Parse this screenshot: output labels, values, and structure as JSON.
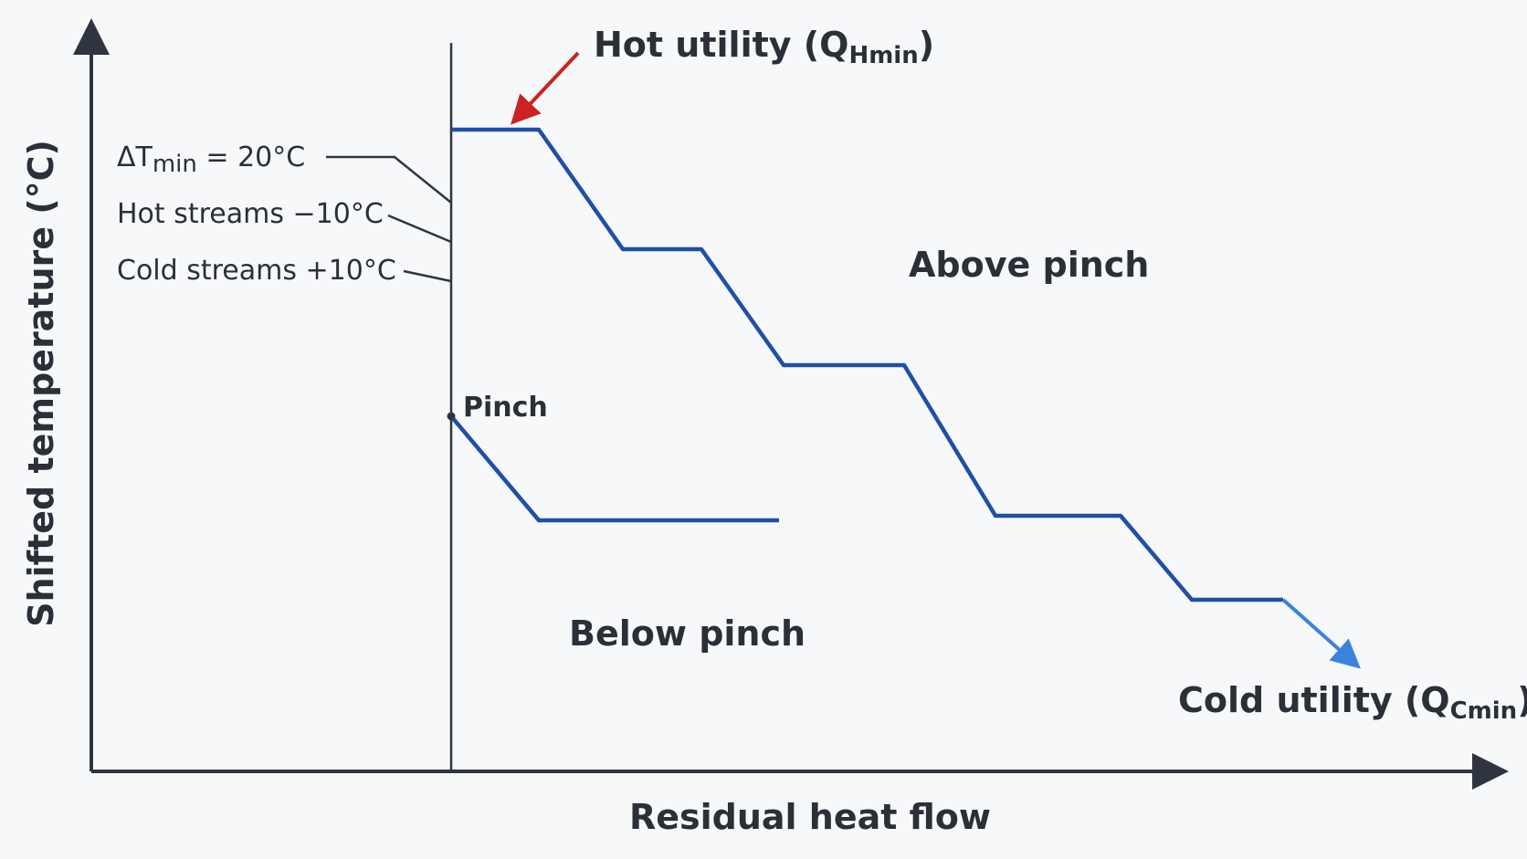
{
  "axes": {
    "x_label": "Residual heat flow",
    "y_label": "Shifted temperature (°C)"
  },
  "hot_utility": {
    "prefix": "Hot utility (Q",
    "subscript": "Hmin",
    "suffix": ")"
  },
  "cold_utility": {
    "prefix": "Cold utility (Q",
    "subscript": "Cmin",
    "suffix": ")"
  },
  "annotations": {
    "delta_prefix": "ΔT",
    "delta_subscript": "min",
    "delta_suffix": " = 20°C",
    "hot_shift": "Hot streams −10°C",
    "cold_shift": "Cold streams +10°C",
    "pinch": "Pinch"
  },
  "regions": {
    "above": "Above pinch",
    "below": "Below pinch"
  },
  "colors": {
    "curve": "#1f4fa8",
    "hot_arrow": "#cc2222",
    "cold_arrow": "#3b82dd",
    "axis": "#2f3540",
    "text": "#2b2f38"
  }
}
